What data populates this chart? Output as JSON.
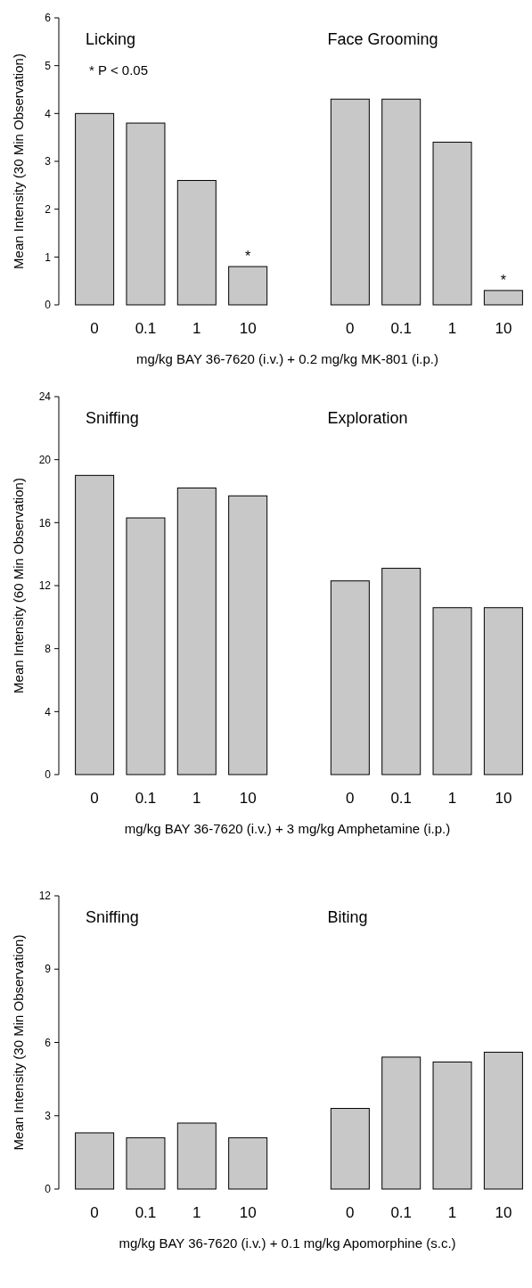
{
  "chart_data": [
    {
      "type": "bar",
      "ylabel": "Mean Intensity (30 Min Observation)",
      "xlabel": "mg/kg BAY 36-7620 (i.v.) + 0.2 mg/kg MK-801 (i.p.)",
      "categories": [
        "0",
        "0.1",
        "1",
        "10",
        null,
        "0",
        "0.1",
        "1",
        "10"
      ],
      "values": [
        4.0,
        3.8,
        2.6,
        0.8,
        null,
        4.3,
        4.3,
        3.4,
        0.3
      ],
      "color": "#c8c8c8",
      "ylim": [
        0,
        6
      ],
      "yticks": [
        0,
        1,
        2,
        3,
        4,
        5,
        6
      ],
      "grid": false,
      "value_labels": [
        null,
        null,
        null,
        "*",
        null,
        null,
        null,
        null,
        "*"
      ],
      "annotations": [
        "Licking",
        "Face Grooming",
        "* P < 0.05"
      ]
    },
    {
      "type": "bar",
      "ylabel": "Mean Intensity (60 Min Observation)",
      "xlabel": "mg/kg BAY 36-7620 (i.v.) + 3 mg/kg Amphetamine (i.p.)",
      "categories": [
        "0",
        "0.1",
        "1",
        "10",
        null,
        "0",
        "0.1",
        "1",
        "10"
      ],
      "values": [
        19.0,
        16.3,
        18.2,
        17.7,
        null,
        12.3,
        13.1,
        10.6,
        10.6
      ],
      "color": "#c8c8c8",
      "ylim": [
        0,
        24
      ],
      "yticks": [
        0,
        4,
        8,
        12,
        16,
        20,
        24
      ],
      "grid": false,
      "annotations": [
        "Sniffing",
        "Exploration"
      ]
    },
    {
      "type": "bar",
      "ylabel": "Mean Intensity (30 Min Observation)",
      "xlabel": "mg/kg BAY 36-7620 (i.v.) + 0.1 mg/kg Apomorphine (s.c.)",
      "categories": [
        "0",
        "0.1",
        "1",
        "10",
        null,
        "0",
        "0.1",
        "1",
        "10"
      ],
      "values": [
        2.3,
        2.1,
        2.7,
        2.1,
        null,
        3.3,
        5.4,
        5.2,
        5.6
      ],
      "color": "#c8c8c8",
      "ylim": [
        0,
        12
      ],
      "yticks": [
        0,
        3,
        6,
        9,
        12
      ],
      "grid": false,
      "annotations": [
        "Sniffing",
        "Biting"
      ]
    }
  ]
}
